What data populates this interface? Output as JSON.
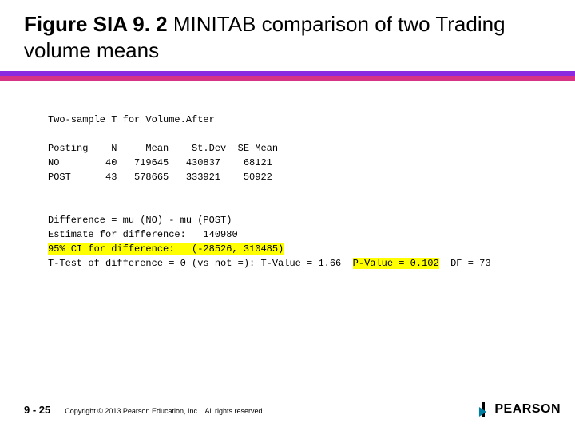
{
  "title": {
    "bold": "Figure SIA 9. 2",
    "rest": "  MINITAB comparison of two Trading volume means"
  },
  "divider": {
    "top_color": "#8a2be2",
    "bottom_color": "#d63384"
  },
  "output": {
    "heading": "Two-sample T for Volume.After",
    "table": {
      "header": "Posting    N     Mean    St.Dev  SE Mean",
      "row1": "NO        40   719645   430837    68121",
      "row2": "POST      43   578665   333921    50922"
    },
    "diff_line": "Difference = mu (NO) - mu (POST)",
    "est_line": "Estimate for difference:   140980",
    "ci_line": "95% CI for difference:   (-28526, 310485)",
    "ttest_prefix": "T-Test of difference = 0 (vs not =): T-Value = 1.66  ",
    "pvalue": "P-Value = 0.102",
    "df_suffix": "  DF = 73"
  },
  "footer": {
    "page": "9 - 25",
    "copyright": "Copyright © 2013 Pearson Education, Inc. . All rights reserved.",
    "logo_text": "PEARSON"
  }
}
